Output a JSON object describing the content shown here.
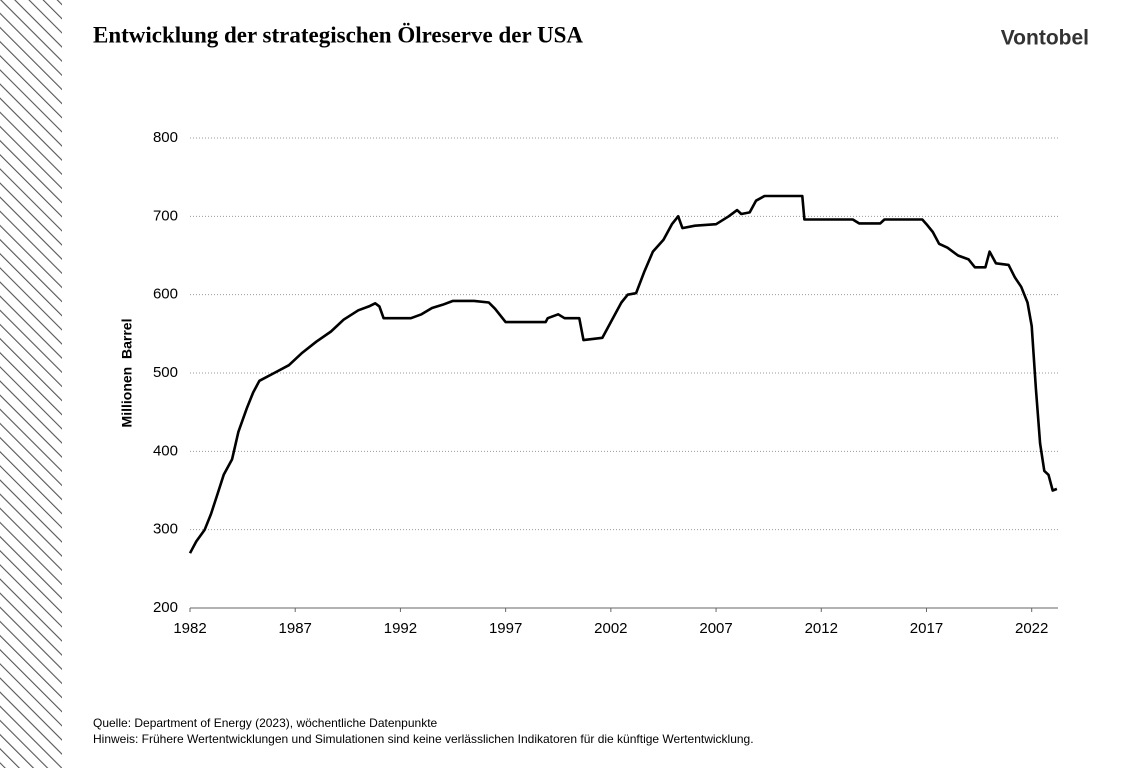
{
  "brand": "Vontobel",
  "chart_data": {
    "type": "line",
    "title": "Entwicklung der strategischen Ölreserve der USA",
    "y_label": "Millionen  Barrel",
    "source": "Quelle: Department of Energy (2023), wöchentliche Datenpunkte",
    "note": "Hinweis: Frühere Wertentwicklungen und Simulationen sind keine verlässlichen Indikatoren für die künftige Wertentwicklung.",
    "color": "#000000",
    "grid": true,
    "xlim": [
      1982,
      2023.25
    ],
    "xticks": [
      1982,
      1987,
      1992,
      1997,
      2002,
      2007,
      2012,
      2017,
      2022
    ],
    "ylim": [
      200,
      800
    ],
    "yticks": [
      200,
      300,
      400,
      500,
      600,
      700,
      800
    ],
    "x": [
      1982.0,
      1982.3,
      1982.7,
      1983.0,
      1983.3,
      1983.6,
      1984.0,
      1984.3,
      1984.7,
      1985.0,
      1985.3,
      1986.0,
      1986.7,
      1987.3,
      1988.0,
      1988.7,
      1989.3,
      1990.0,
      1990.5,
      1990.8,
      1991.0,
      1991.2,
      1992.5,
      1993.0,
      1993.5,
      1994.0,
      1994.5,
      1995.5,
      1996.2,
      1996.5,
      1997.0,
      1998.0,
      1998.9,
      1999.0,
      1999.5,
      1999.8,
      2000.5,
      2000.7,
      2001.0,
      2001.6,
      2002.0,
      2002.5,
      2002.8,
      2003.2,
      2003.6,
      2004.0,
      2004.5,
      2004.9,
      2005.2,
      2005.4,
      2006.0,
      2007.0,
      2007.6,
      2008.0,
      2008.2,
      2008.6,
      2008.9,
      2009.3,
      2011.1,
      2011.2,
      2012.0,
      2013.5,
      2013.8,
      2014.8,
      2015.0,
      2016.8,
      2017.0,
      2017.3,
      2017.6,
      2018.0,
      2018.5,
      2019.0,
      2019.3,
      2019.8,
      2020.0,
      2020.3,
      2020.9,
      2021.2,
      2021.5,
      2021.8,
      2022.0,
      2022.2,
      2022.4,
      2022.6,
      2022.8,
      2023.0,
      2023.2
    ],
    "values": [
      270,
      285,
      300,
      320,
      345,
      370,
      390,
      425,
      455,
      475,
      490,
      500,
      510,
      525,
      540,
      553,
      568,
      580,
      585,
      589,
      585,
      570,
      570,
      575,
      583,
      587,
      592,
      592,
      590,
      582,
      565,
      565,
      565,
      570,
      575,
      570,
      570,
      542,
      543,
      545,
      565,
      590,
      600,
      602,
      630,
      655,
      670,
      690,
      700,
      685,
      688,
      690,
      700,
      708,
      703,
      705,
      720,
      726,
      726,
      696,
      696,
      696,
      691,
      691,
      696,
      696,
      690,
      680,
      665,
      660,
      650,
      645,
      635,
      635,
      655,
      640,
      638,
      622,
      610,
      590,
      560,
      480,
      410,
      375,
      370,
      350,
      352
    ]
  }
}
